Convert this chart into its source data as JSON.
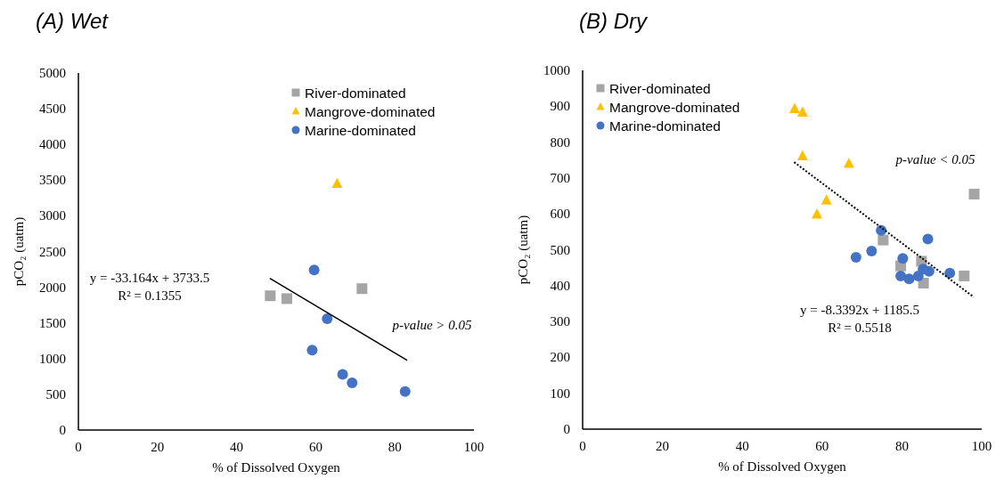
{
  "chart_data": [
    {
      "type": "scatter",
      "title": "(A) Wet",
      "xlabel": "% of Dissolved Oxygen",
      "ylabel": "pCO₂ (uatm)",
      "xlim": [
        0,
        100
      ],
      "xticks": [
        0,
        20,
        40,
        60,
        80,
        100
      ],
      "ylim": [
        0,
        5000
      ],
      "yticks": [
        0,
        500,
        1000,
        1500,
        2000,
        2500,
        3000,
        3500,
        4000,
        4500,
        5000
      ],
      "legend": "top right",
      "annotations": [
        "y = -33.164x + 3733.5",
        "R² = 0.1355",
        "p-value > 0.05"
      ],
      "series": [
        {
          "name": "River-dominated",
          "color": "#a5a5a5",
          "marker": "square",
          "x": [
            48.5,
            52.7,
            71.7
          ],
          "values": [
            1880,
            1840,
            1980
          ]
        },
        {
          "name": "Mangrove-dominated",
          "color": "#ffc000",
          "marker": "triangle",
          "x": [
            65.4
          ],
          "values": [
            3450
          ]
        },
        {
          "name": "Marine-dominated",
          "color": "#4472c4",
          "marker": "circle",
          "x": [
            59.6,
            62.9,
            59.1,
            66.8,
            69.2,
            82.6
          ],
          "values": [
            2240,
            1560,
            1120,
            780,
            660,
            540
          ]
        },
        {
          "type": "line",
          "color": "#000000",
          "line_style": "solid",
          "x": [
            48.5,
            83
          ],
          "values": [
            2120,
            980
          ]
        }
      ]
    },
    {
      "type": "scatter",
      "title": "(B) Dry",
      "xlabel": "% of Dissolved Oxygen",
      "ylabel": "pCO₂ (uatm)",
      "xlim": [
        0,
        100
      ],
      "xticks": [
        0,
        20,
        40,
        60,
        80,
        100
      ],
      "ylim": [
        0,
        1000
      ],
      "yticks": [
        0,
        100,
        200,
        300,
        400,
        500,
        600,
        700,
        800,
        900,
        1000
      ],
      "legend": "top left",
      "annotations": [
        "y = -8.3392x + 1185.5",
        "R² = 0.5518",
        "p-value < 0.05"
      ],
      "series": [
        {
          "name": "River-dominated",
          "color": "#a5a5a5",
          "marker": "square",
          "x": [
            98.1,
            75.3,
            79.7,
            84.9,
            85.4,
            95.6
          ],
          "values": [
            655,
            527,
            455,
            468,
            407,
            427
          ]
        },
        {
          "name": "Mangrove-dominated",
          "color": "#ffc000",
          "marker": "triangle",
          "x": [
            53.1,
            55.1,
            55.1,
            66.7,
            61.1,
            58.7
          ],
          "values": [
            893,
            883,
            761,
            740,
            638,
            599
          ]
        },
        {
          "name": "Marine-dominated",
          "color": "#4472c4",
          "marker": "circle",
          "x": [
            74.8,
            68.5,
            72.4,
            80.2,
            86.5,
            79.7,
            81.8,
            84.1,
            85.3,
            86.8,
            92.0
          ],
          "values": [
            554,
            479,
            496,
            476,
            530,
            427,
            419,
            427,
            446,
            440,
            435
          ]
        },
        {
          "type": "line",
          "color": "#000000",
          "line_style": "dotted",
          "x": [
            53,
            98
          ],
          "values": [
            744,
            368
          ]
        }
      ]
    }
  ]
}
